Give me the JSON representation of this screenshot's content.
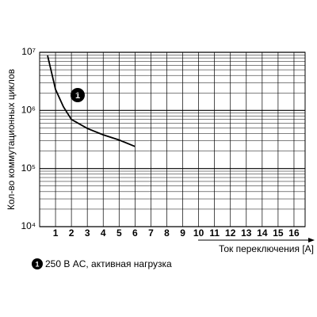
{
  "chart_data": {
    "type": "line",
    "x_label": "Ток переключения [A]",
    "y_label": "Кол-во коммутационных циклов",
    "annotation": "1",
    "x": [
      0.5,
      1,
      1.5,
      2,
      3,
      4,
      5,
      6
    ],
    "series": [
      {
        "name": "250 В AC, активная нагрузка",
        "color": "#000000",
        "values": [
          8800000,
          2300000,
          1150000,
          700000,
          490000,
          380000,
          310000,
          240000
        ]
      }
    ],
    "xlim": [
      0,
      16.7
    ],
    "xticks": [
      1,
      2,
      3,
      4,
      5,
      6,
      7,
      8,
      9,
      10,
      11,
      12,
      13,
      14,
      15,
      16
    ],
    "ylim": [
      10000,
      10000000
    ],
    "yticks": [
      {
        "value": 10000,
        "label": "10⁴"
      },
      {
        "value": 100000,
        "label": "10⁵"
      },
      {
        "value": 1000000,
        "label": "10⁶"
      },
      {
        "value": 10000000,
        "label": "10⁷"
      }
    ],
    "y_log": true,
    "grid": true
  }
}
